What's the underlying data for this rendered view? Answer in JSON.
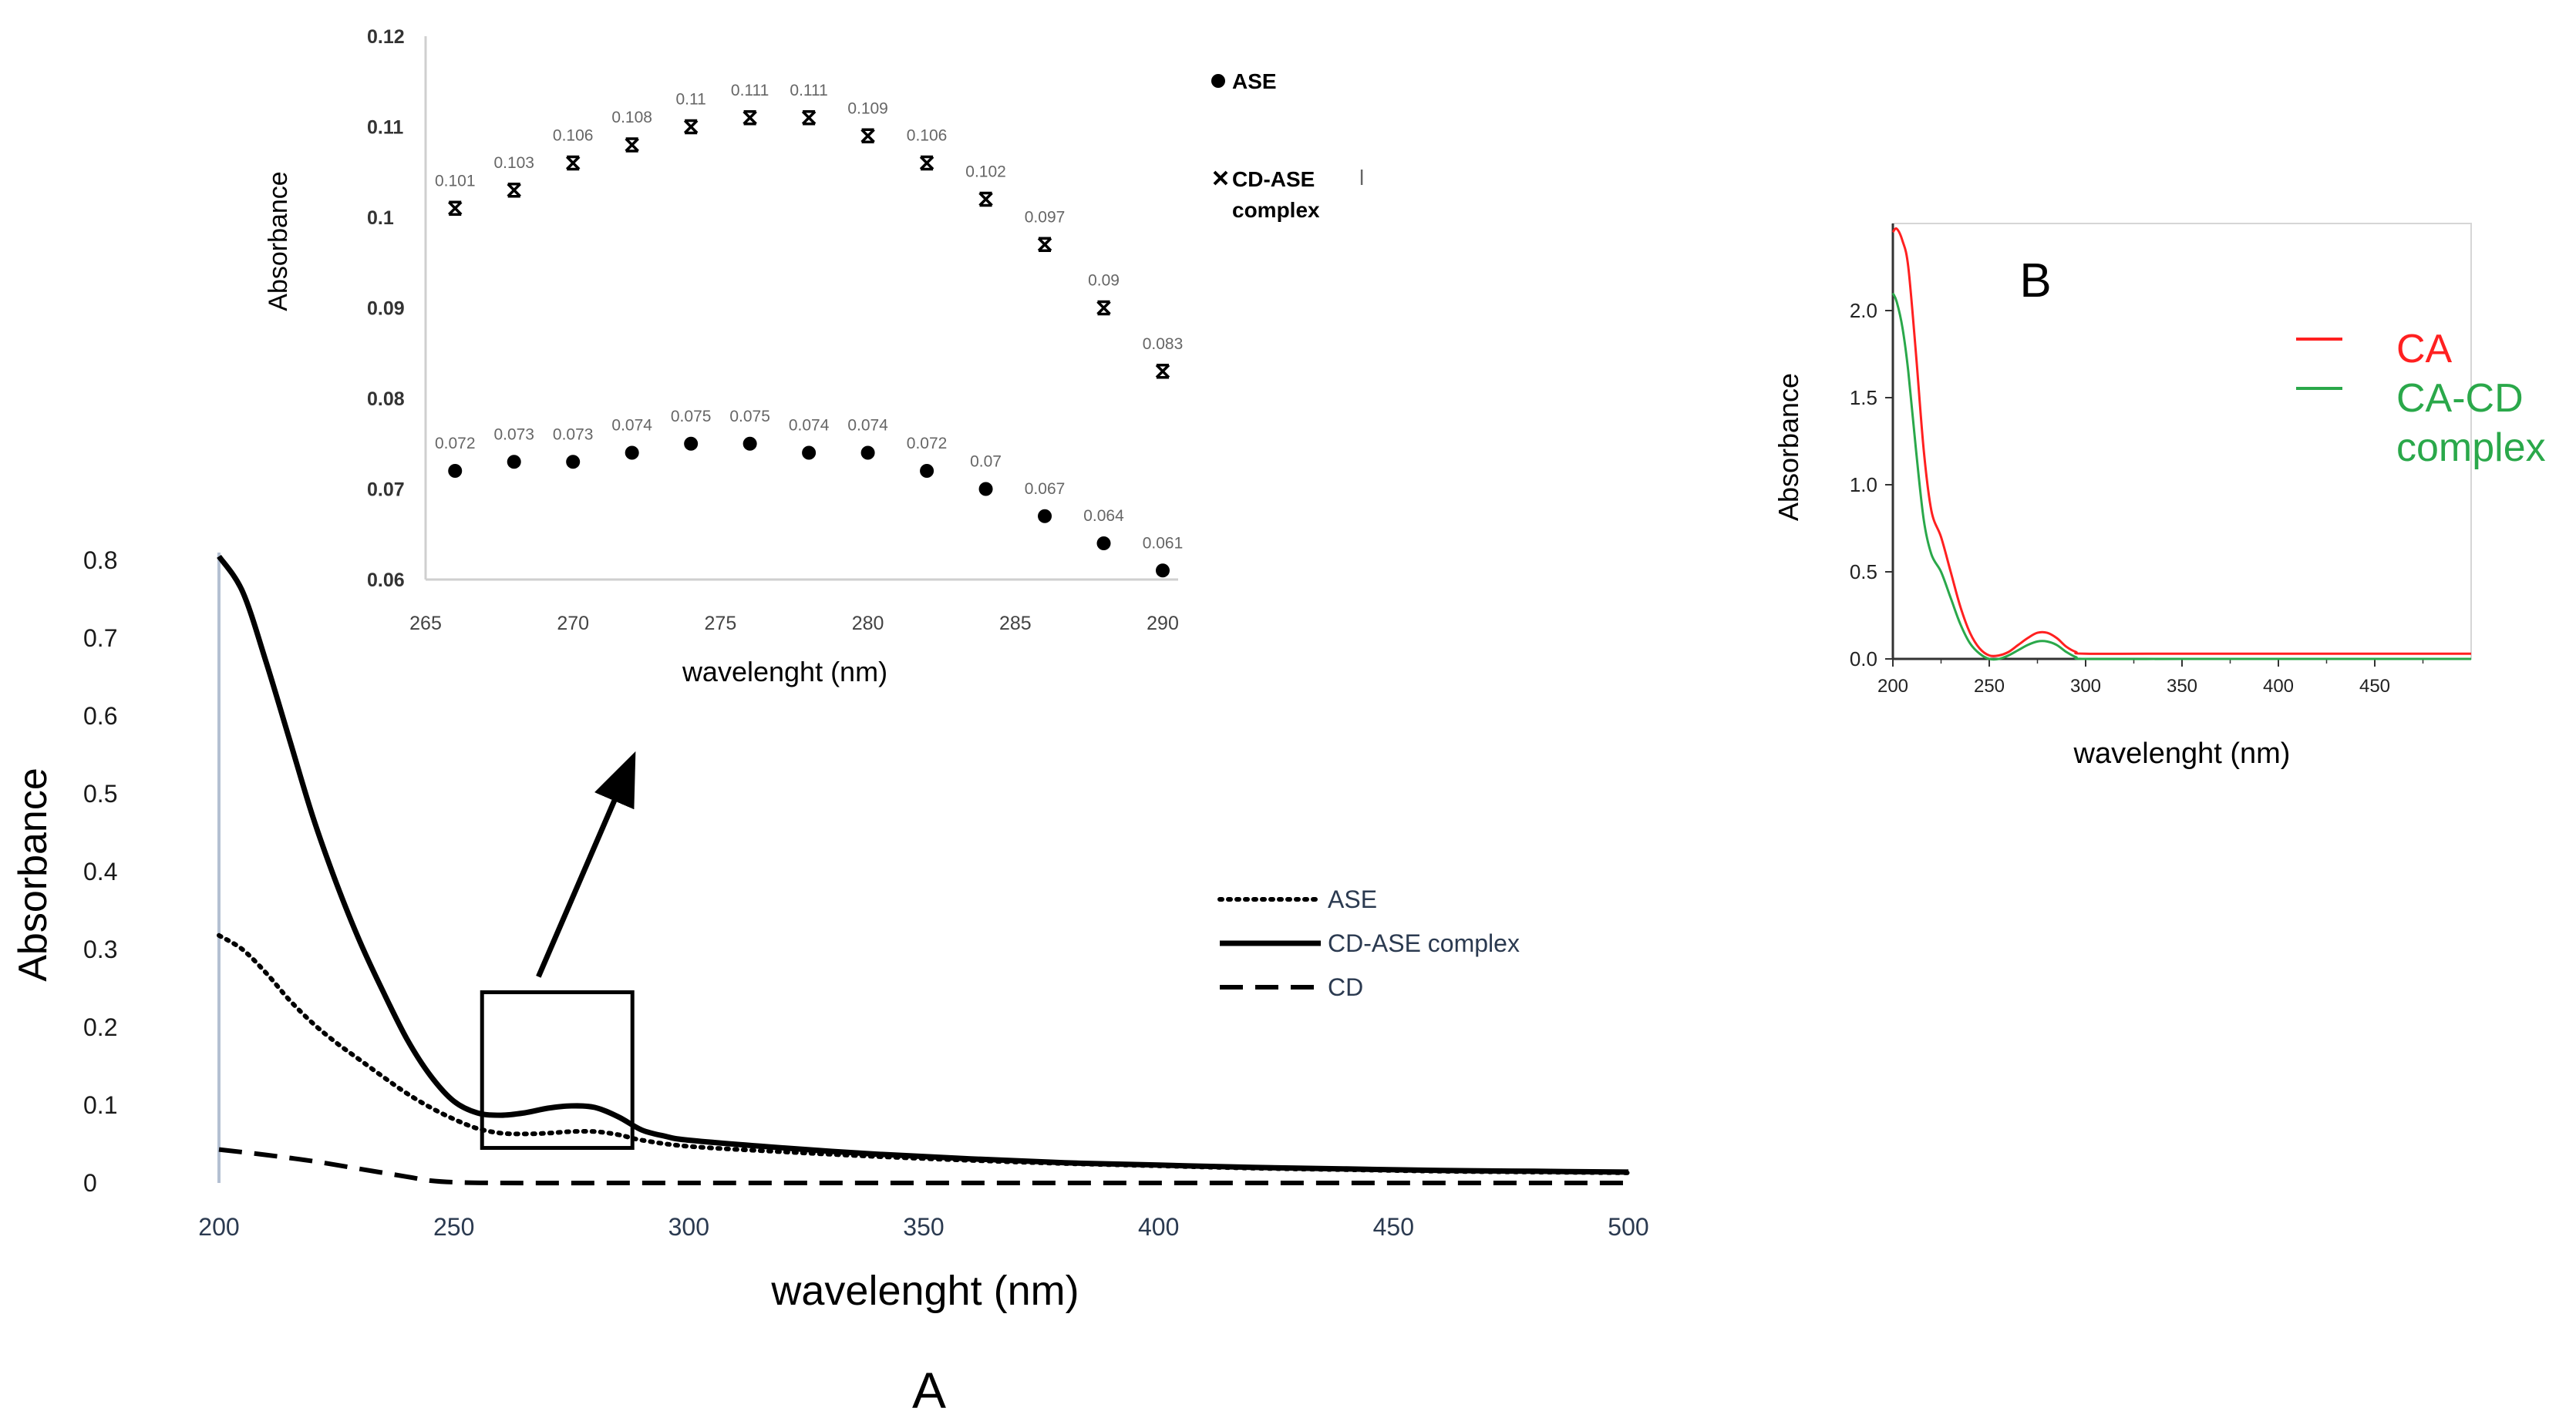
{
  "chart_data": [
    {
      "id": "A",
      "type": "line",
      "panel_label": "A",
      "title": "",
      "xlabel": "wavelenght (nm)",
      "ylabel": "Absorbance",
      "xlim": [
        200,
        500
      ],
      "ylim": [
        0,
        0.8
      ],
      "x_ticks": [
        "200",
        "250",
        "300",
        "350",
        "400",
        "450",
        "500"
      ],
      "y_ticks": [
        "0",
        "0.1",
        "0.2",
        "0.3",
        "0.4",
        "0.5",
        "0.6",
        "0.7",
        "0.8"
      ],
      "grid": false,
      "legend_position": "right",
      "series": [
        {
          "name": "ASE",
          "style": "dotted",
          "color": "#000000",
          "x": [
            200,
            205,
            210,
            215,
            220,
            225,
            230,
            235,
            240,
            245,
            250,
            255,
            260,
            265,
            270,
            275,
            280,
            285,
            290,
            300,
            320,
            340,
            360,
            380,
            400,
            420,
            440,
            460,
            480,
            500
          ],
          "y": [
            0.318,
            0.3,
            0.27,
            0.235,
            0.205,
            0.18,
            0.158,
            0.136,
            0.115,
            0.097,
            0.082,
            0.07,
            0.064,
            0.063,
            0.064,
            0.066,
            0.066,
            0.062,
            0.055,
            0.047,
            0.04,
            0.034,
            0.029,
            0.025,
            0.022,
            0.019,
            0.017,
            0.015,
            0.014,
            0.013
          ]
        },
        {
          "name": "CD-ASE complex",
          "style": "solid",
          "color": "#000000",
          "x": [
            200,
            205,
            210,
            215,
            220,
            225,
            230,
            235,
            240,
            245,
            250,
            255,
            260,
            265,
            270,
            275,
            280,
            285,
            290,
            295,
            300,
            320,
            340,
            360,
            380,
            400,
            420,
            440,
            460,
            480,
            500
          ],
          "y": [
            0.805,
            0.76,
            0.67,
            0.57,
            0.47,
            0.385,
            0.31,
            0.245,
            0.185,
            0.138,
            0.105,
            0.09,
            0.087,
            0.09,
            0.096,
            0.099,
            0.097,
            0.085,
            0.068,
            0.06,
            0.055,
            0.045,
            0.037,
            0.031,
            0.026,
            0.023,
            0.02,
            0.018,
            0.016,
            0.015,
            0.014
          ]
        },
        {
          "name": "CD",
          "style": "dashed",
          "color": "#000000",
          "x": [
            200,
            210,
            220,
            230,
            240,
            245,
            250,
            260,
            300,
            350,
            400,
            450,
            500
          ],
          "y": [
            0.043,
            0.036,
            0.028,
            0.018,
            0.008,
            0.003,
            0.001,
            0.0,
            0.0,
            0.0,
            0.0,
            0.0,
            0.0
          ]
        }
      ],
      "annotations": [
        {
          "type": "rectangle",
          "x_range": [
            256,
            288
          ],
          "y_range": [
            0.045,
            0.245
          ]
        },
        {
          "type": "arrow",
          "from": [
            268,
            0.265
          ],
          "to": [
            288,
            0.545
          ]
        }
      ]
    },
    {
      "id": "A-inset",
      "type": "scatter",
      "title": "",
      "xlabel": "wavelenght (nm)",
      "ylabel": "Absorbance",
      "xlim": [
        265,
        290
      ],
      "ylim": [
        0.06,
        0.12
      ],
      "x_ticks": [
        "265",
        "270",
        "275",
        "280",
        "285",
        "290"
      ],
      "y_ticks": [
        "0.06",
        "0.07",
        "0.08",
        "0.09",
        "0.1",
        "0.11",
        "0.12"
      ],
      "grid": false,
      "legend_position": "right",
      "series": [
        {
          "name": "ASE",
          "marker": "circle",
          "color": "#000000",
          "x": [
            266,
            268,
            270,
            272,
            274,
            276,
            278,
            280,
            282,
            284,
            286,
            288,
            290
          ],
          "y": [
            0.072,
            0.073,
            0.073,
            0.074,
            0.075,
            0.075,
            0.074,
            0.074,
            0.072,
            0.07,
            0.067,
            0.064,
            0.061
          ],
          "labels": [
            "0.072",
            "0.073",
            "0.073",
            "0.074",
            "0.075",
            "0.075",
            "0.074",
            "0.074",
            "0.072",
            "0.07",
            "0.067",
            "0.064",
            "0.061"
          ]
        },
        {
          "name": "CD-ASE complex",
          "legend_lines": [
            "CD-ASE",
            "complex"
          ],
          "marker": "x",
          "color": "#000000",
          "x": [
            266,
            268,
            270,
            272,
            274,
            276,
            278,
            280,
            282,
            284,
            286,
            288,
            290
          ],
          "y": [
            0.101,
            0.103,
            0.106,
            0.108,
            0.11,
            0.111,
            0.111,
            0.109,
            0.106,
            0.102,
            0.097,
            0.09,
            0.083
          ],
          "labels": [
            "0.101",
            "0.103",
            "0.106",
            "0.108",
            "0.11",
            "0.111",
            "0.111",
            "0.109",
            "0.106",
            "0.102",
            "0.097",
            "0.09",
            "0.083"
          ]
        }
      ],
      "stray_mark": "l"
    },
    {
      "id": "B",
      "type": "line",
      "panel_label": "B",
      "title": "",
      "xlabel": "wavelenght (nm)",
      "ylabel": "Absorbance",
      "xlim": [
        200,
        500
      ],
      "ylim": [
        0,
        2.5
      ],
      "x_ticks": [
        "200",
        "250",
        "300",
        "350",
        "400",
        "450"
      ],
      "y_ticks": [
        "0.0",
        "0.5",
        "1.0",
        "1.5",
        "2.0"
      ],
      "grid": false,
      "legend_position": "right",
      "series": [
        {
          "name": "CA",
          "legend_lines": [
            "CA"
          ],
          "color": "#ff2020",
          "x": [
            200,
            202,
            205,
            208,
            212,
            216,
            220,
            225,
            230,
            235,
            240,
            245,
            250,
            255,
            260,
            265,
            270,
            275,
            280,
            285,
            290,
            295,
            300,
            350,
            400,
            450,
            500
          ],
          "y": [
            2.45,
            2.47,
            2.4,
            2.25,
            1.75,
            1.2,
            0.85,
            0.7,
            0.5,
            0.3,
            0.15,
            0.06,
            0.02,
            0.02,
            0.04,
            0.08,
            0.12,
            0.15,
            0.15,
            0.12,
            0.07,
            0.04,
            0.03,
            0.03,
            0.03,
            0.03,
            0.03
          ]
        },
        {
          "name": "CA-CD complex",
          "legend_lines": [
            "CA-CD",
            "complex"
          ],
          "color": "#2aa84a",
          "x": [
            200,
            202,
            205,
            208,
            212,
            216,
            220,
            225,
            230,
            235,
            240,
            245,
            250,
            255,
            260,
            265,
            270,
            275,
            280,
            285,
            290,
            295,
            300,
            350,
            400,
            450,
            500
          ],
          "y": [
            2.1,
            2.05,
            1.9,
            1.65,
            1.2,
            0.8,
            0.6,
            0.5,
            0.35,
            0.2,
            0.09,
            0.03,
            0.0,
            0.0,
            0.02,
            0.05,
            0.08,
            0.1,
            0.1,
            0.08,
            0.04,
            0.01,
            0.0,
            0.0,
            0.0,
            0.0,
            0.0
          ]
        }
      ]
    }
  ]
}
